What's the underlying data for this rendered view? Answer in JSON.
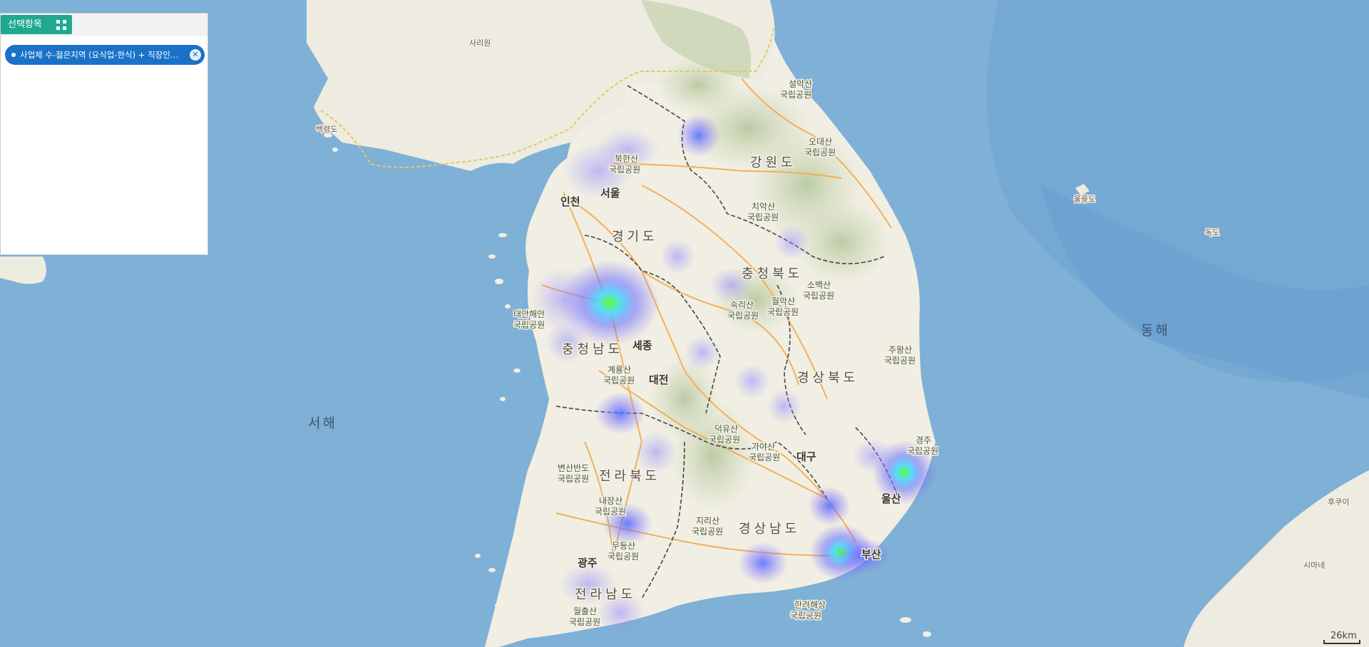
{
  "panel": {
    "title": "선택항목",
    "grid_icon": "grid-icon",
    "chip_label": "사업체 수-젊은지역 (요식업-한식) + 직장인…",
    "close_icon": "close-icon"
  },
  "map": {
    "seas": {
      "east": "동해",
      "west": "서해"
    },
    "islands": {
      "ulleungdo": "울릉도",
      "dokdo": "독도",
      "baengnyeongdo": "백령도"
    },
    "north": {
      "sariwon": "사리원"
    },
    "provinces": {
      "gangwon": "강원도",
      "gyeonggi": "경기도",
      "chungbuk": "충청북도",
      "chungnam": "충청남도",
      "gyeongbuk": "경상북도",
      "jeonbuk": "전라북도",
      "gyeongnam": "경상남도",
      "jeonnam": "전라남도"
    },
    "cities": {
      "seoul": "서울",
      "incheon": "인천",
      "sejong": "세종",
      "daejeon": "대전",
      "daegu": "대구",
      "ulsan": "울산",
      "busan": "부산",
      "gwangju": "광주"
    },
    "parks": {
      "seorak": [
        "설악산",
        "국립공원"
      ],
      "odae": [
        "오대산",
        "국립공원"
      ],
      "bukhan": [
        "북한산",
        "국립공원"
      ],
      "chiak": [
        "치악산",
        "국립공원"
      ],
      "sobaek": [
        "소백산",
        "국립공원"
      ],
      "woraksan": [
        "월악산",
        "국립공원"
      ],
      "songni": [
        "속리산",
        "국립공원"
      ],
      "taean": [
        "태안해안",
        "국립공원"
      ],
      "gyeryong": [
        "계룡산",
        "국립공원"
      ],
      "juwang": [
        "주왕산",
        "국립공원"
      ],
      "gyeongju": [
        "경주",
        "국립공원"
      ],
      "deogyu": [
        "덕유산",
        "국립공원"
      ],
      "gaya": [
        "가야산",
        "국립공원"
      ],
      "byeonsan": [
        "변산반도",
        "국립공원"
      ],
      "naejang": [
        "내장산",
        "국립공원"
      ],
      "jiri": [
        "지리산",
        "국립공원"
      ],
      "mudeung": [
        "무등산",
        "국립공원"
      ],
      "wolchul": [
        "월출산",
        "국립공원"
      ],
      "hallyeo": [
        "한려해상",
        "국립공원"
      ]
    },
    "japan": {
      "hukui": "후쿠이",
      "simane": "시마네"
    }
  },
  "scale": {
    "label": "26km"
  },
  "colors": {
    "sea": "#7fb0d6",
    "land": "#f1efe4",
    "road": "#f4a640",
    "border": "#444444",
    "chip": "#1a72c8",
    "button": "#20a98f"
  }
}
